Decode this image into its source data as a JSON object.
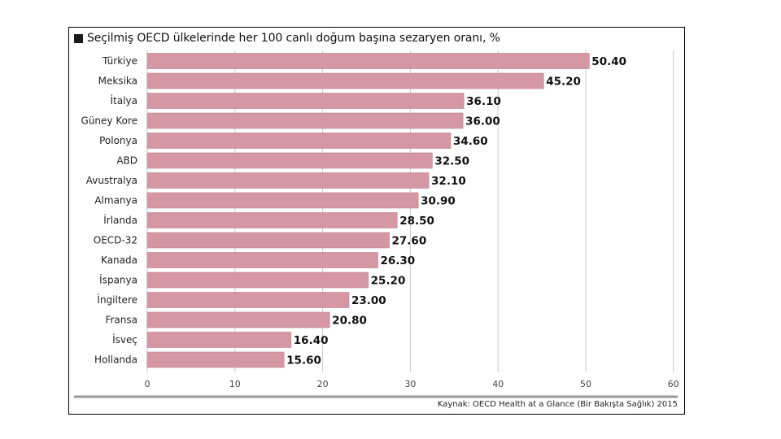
{
  "chart_data": {
    "type": "bar",
    "orientation": "horizontal",
    "title": "Seçilmiş OECD ülkelerinde her 100 canlı doğum başına sezaryen oranı, %",
    "categories": [
      "Türkiye",
      "Meksika",
      "İtalya",
      "Güney Kore",
      "Polonya",
      "ABD",
      "Avustralya",
      "Almanya",
      "İrlanda",
      "OECD-32",
      "Kanada",
      "İspanya",
      "İngiltere",
      "Fransa",
      "İsveç",
      "Hollanda"
    ],
    "values": [
      50.4,
      45.2,
      36.1,
      36.0,
      34.6,
      32.5,
      32.1,
      30.9,
      28.5,
      27.6,
      26.3,
      25.2,
      23.0,
      20.8,
      16.4,
      15.6
    ],
    "value_labels": [
      "50.40",
      "45.20",
      "36.10",
      "36.00",
      "34.60",
      "32.50",
      "32.10",
      "30.90",
      "28.50",
      "27.60",
      "26.30",
      "25.20",
      "23.00",
      "20.80",
      "16.40",
      "15.60"
    ],
    "xticks": [
      0,
      10,
      20,
      30,
      40,
      50,
      60
    ],
    "xlim": [
      0,
      60
    ],
    "xlabel": "",
    "ylabel": "",
    "grid": true,
    "bar_color": "#d597a4",
    "source": "Kaynak: OECD Health at a Glance (Bir Bakışta Sağlık) 2015"
  }
}
